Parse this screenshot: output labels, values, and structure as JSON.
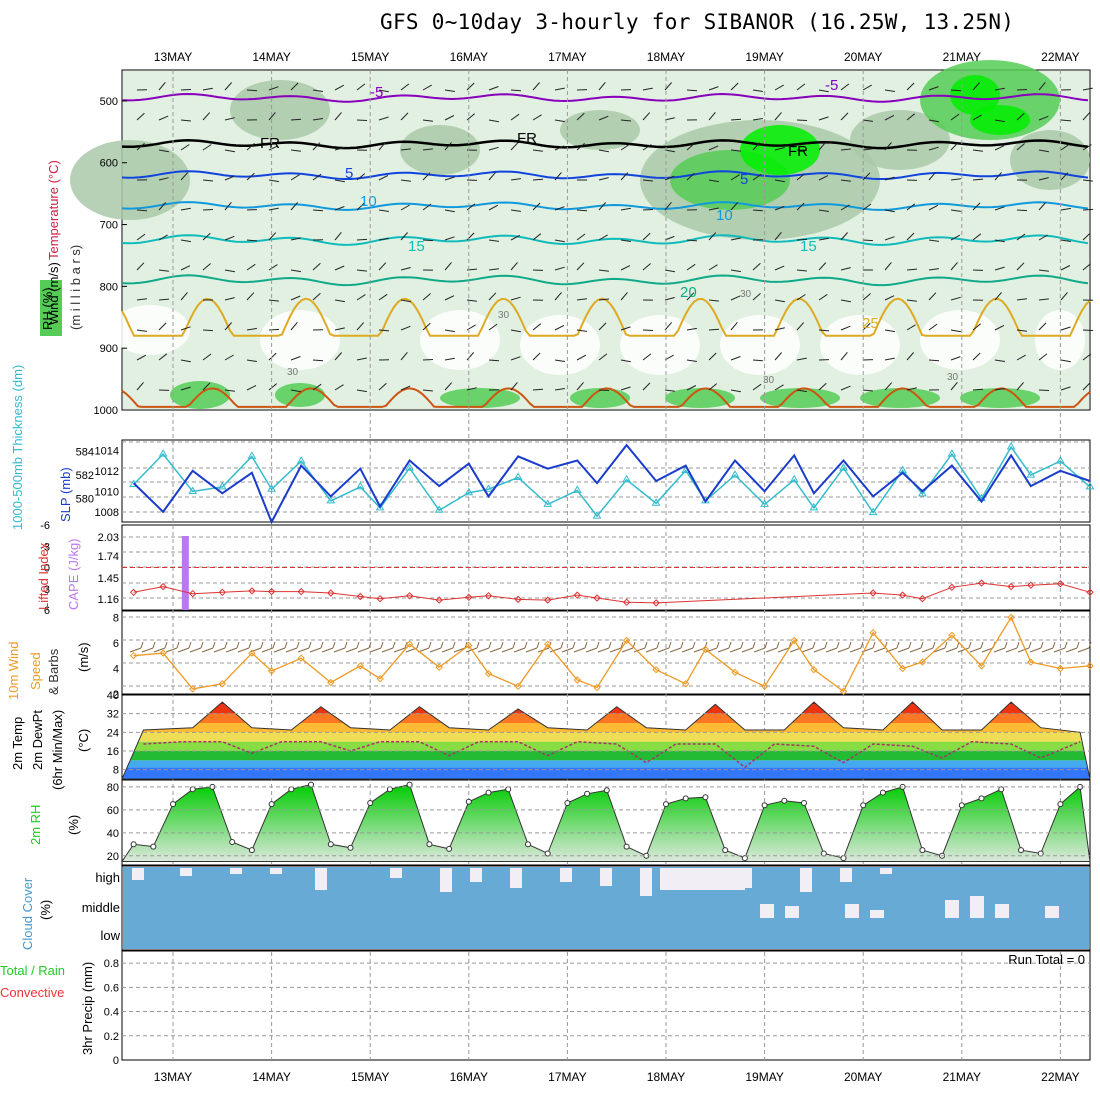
{
  "title": "GFS 0~10day 3-hourly for SIBANOR (16.25W, 13.25N)",
  "colors": {
    "grid": "#999999",
    "rh_light": "#e2f0e2",
    "rh_mid": "#a9c9a9",
    "rh_green": "#55cc55",
    "rh_bright": "#00ee00",
    "temp_cold": "#8800bb",
    "temp_fr": "#000000",
    "temp_5": "#1144dd",
    "temp_10": "#1199dd",
    "temp_15": "#11bbbb",
    "temp_20": "#11aa88",
    "temp_25": "#ddaa22",
    "temp_30": "#cc5511",
    "slp": "#1a3ccc",
    "thickness": "#33bbcc",
    "lifted": "#dd3333",
    "cape": "#bb77ee",
    "wind10m": "#ee9922",
    "barb": "#886644",
    "cloud_bg": "#66aad5",
    "cloud_clear": "#f2eef6",
    "rh2m": "#22cc22"
  },
  "dates": [
    "13MAY",
    "14MAY",
    "15MAY",
    "16MAY",
    "17MAY",
    "18MAY",
    "19MAY",
    "20MAY",
    "21MAY",
    "22MAY"
  ],
  "panels": {
    "upper": {
      "ylabel_wind": "Wind (m/s)",
      "ylabel_temp": "Temperature (°C)",
      "ylabel_rh": "RH (%)",
      "ylabel_mb": "(m i l l i b a r s)",
      "yticks": [
        "500",
        "600",
        "700",
        "800",
        "900",
        "1000"
      ],
      "contour_labels": [
        "-5",
        "-5",
        "FR",
        "FR",
        "FR",
        "5",
        "5",
        "10",
        "10",
        "15",
        "15",
        "20",
        "25",
        "30",
        "30",
        "30",
        "30",
        "30"
      ]
    },
    "slp": {
      "ylabel_thick": "1000-500mb Thickness (dm)",
      "ylabel_slp": "SLP (mb)",
      "left_ticks": [
        "584",
        "582",
        "580"
      ],
      "right_ticks": [
        "1014",
        "1012",
        "1010",
        "1008"
      ]
    },
    "lifted": {
      "ylabel_li": "Lifted Index",
      "ylabel_cape": "CAPE (J/kg)",
      "left_ticks": [
        "-6",
        "-3",
        "0",
        "3",
        "6"
      ],
      "right_ticks": [
        "2.03",
        "1.74",
        "1.45",
        "1.16"
      ]
    },
    "wind": {
      "ylabel_a": "10m Wind",
      "ylabel_b": "Speed",
      "ylabel_c": "& Barbs",
      "unit": "(m/s)",
      "ticks": [
        "8",
        "6",
        "4",
        "2"
      ]
    },
    "temp": {
      "ylabel_a": "2m Temp",
      "ylabel_b": "2m DewPt",
      "ylabel_c": "(6hr Min/Max)",
      "unit": "(°C)",
      "ticks": [
        "40",
        "32",
        "24",
        "16",
        "8"
      ]
    },
    "rh": {
      "ylabel": "2m RH",
      "unit": "(%)",
      "ticks": [
        "80",
        "60",
        "40",
        "20"
      ]
    },
    "cloud": {
      "ylabel": "Cloud Cover",
      "unit": "(%)",
      "levels": [
        "high",
        "middle",
        "low"
      ]
    },
    "precip": {
      "ylabel_a": "Total / Rain",
      "ylabel_b": "Convective",
      "ylabel_c": "3hr Precip (mm)",
      "ticks": [
        "0.8",
        "0.6",
        "0.4",
        "0.2",
        "0"
      ],
      "run_total": "Run Total = 0"
    }
  },
  "chart_data": [
    {
      "type": "line",
      "name": "SLP",
      "x_unit": "day offset from 13MAY",
      "ylim": [
        1007,
        1015
      ],
      "series": [
        {
          "name": "SLP (mb)",
          "x": [
            -0.4,
            -0.1,
            0.2,
            0.5,
            0.8,
            1.0,
            1.3,
            1.6,
            1.9,
            2.1,
            2.4,
            2.7,
            3.0,
            3.2,
            3.5,
            3.8,
            4.1,
            4.3,
            4.6,
            4.9,
            5.2,
            5.4,
            5.7,
            6.0,
            6.3,
            6.5,
            6.8,
            7.1,
            7.4,
            7.6,
            7.9,
            8.2,
            8.5,
            8.7,
            9.0,
            9.3
          ],
          "values": [
            1010.8,
            1008.0,
            1012.0,
            1009.8,
            1011.8,
            1007.0,
            1012.5,
            1009.5,
            1012.2,
            1008.5,
            1013.0,
            1010.5,
            1012.7,
            1009.5,
            1013.4,
            1012.2,
            1013.0,
            1010.8,
            1014.5,
            1011.0,
            1012.5,
            1009.0,
            1013.0,
            1010.0,
            1013.5,
            1009.8,
            1013.0,
            1009.5,
            1011.8,
            1010.0,
            1012.5,
            1009.0,
            1013.5,
            1010.5,
            1012.0,
            1011.0
          ]
        },
        {
          "name": "1000-500mb Thickness (dm)",
          "x": [
            -0.4,
            -0.1,
            0.2,
            0.5,
            0.8,
            1.0,
            1.3,
            1.6,
            1.9,
            2.1,
            2.4,
            2.7,
            3.0,
            3.2,
            3.5,
            3.8,
            4.1,
            4.3,
            4.6,
            4.9,
            5.2,
            5.4,
            5.7,
            6.0,
            6.3,
            6.5,
            6.8,
            7.1,
            7.4,
            7.6,
            7.9,
            8.2,
            8.5,
            8.7,
            9.0,
            9.3
          ],
          "values": [
            581.2,
            583.8,
            580.6,
            581.0,
            583.6,
            580.8,
            583.2,
            579.8,
            581.0,
            579.2,
            582.6,
            579.0,
            580.5,
            580.8,
            581.8,
            579.5,
            580.7,
            578.5,
            581.6,
            579.6,
            582.4,
            579.8,
            582.0,
            579.5,
            581.6,
            579.2,
            582.6,
            578.8,
            582.4,
            580.4,
            583.8,
            580.0,
            584.4,
            582.0,
            583.2,
            581.0
          ]
        }
      ]
    },
    {
      "type": "line",
      "name": "Lifted Index",
      "x_unit": "day offset from 13MAY",
      "ylim": [
        6,
        -6
      ],
      "series": [
        {
          "name": "Lifted Index",
          "x": [
            -0.4,
            -0.1,
            0.2,
            0.5,
            0.8,
            1.0,
            1.3,
            1.6,
            1.9,
            2.1,
            2.4,
            2.7,
            3.0,
            3.2,
            3.5,
            3.8,
            4.1,
            4.3,
            4.6,
            4.9,
            5.2,
            5.4,
            5.7,
            6.0,
            6.3,
            6.5,
            6.8,
            7.1,
            7.4,
            7.6,
            7.9,
            8.2,
            8.5,
            8.7,
            9.0,
            9.3
          ],
          "values": [
            3.5,
            2.7,
            3.7,
            3.5,
            3.3,
            3.4,
            3.4,
            3.6,
            4.1,
            4.4,
            4.0,
            4.6,
            4.2,
            4.0,
            4.5,
            4.6,
            3.9,
            4.3,
            4.9,
            5.0,
            5.6,
            5.8,
            6.0,
            6.1,
            6.2,
            6.2,
            6.1,
            3.6,
            3.9,
            4.4,
            2.8,
            2.2,
            2.7,
            2.5,
            2.3,
            3.5
          ]
        }
      ]
    },
    {
      "type": "line",
      "name": "10m Wind Speed",
      "x_unit": "day offset from 13MAY",
      "ylim": [
        2,
        9
      ],
      "series": [
        {
          "name": "10m Wind Speed (m/s)",
          "x": [
            -0.4,
            -0.1,
            0.2,
            0.5,
            0.8,
            1.0,
            1.3,
            1.6,
            1.9,
            2.1,
            2.4,
            2.7,
            3.0,
            3.2,
            3.5,
            3.8,
            4.1,
            4.3,
            4.6,
            4.9,
            5.2,
            5.4,
            5.7,
            6.0,
            6.3,
            6.5,
            6.8,
            7.1,
            7.4,
            7.6,
            7.9,
            8.2,
            8.5,
            8.7,
            9.0,
            9.3
          ],
          "values": [
            5.0,
            5.2,
            2.4,
            2.8,
            5.2,
            3.8,
            4.8,
            2.9,
            4.2,
            3.2,
            5.9,
            4.1,
            5.8,
            3.6,
            2.6,
            5.9,
            3.1,
            2.5,
            6.2,
            3.9,
            2.8,
            5.5,
            3.7,
            2.6,
            6.2,
            3.9,
            2.2,
            6.8,
            4.0,
            4.5,
            6.6,
            4.2,
            8.0,
            4.5,
            4.0,
            4.2
          ]
        }
      ]
    },
    {
      "type": "area",
      "name": "2m Temp / DewPt",
      "x_unit": "day offset from 13MAY",
      "ylim": [
        4,
        40
      ],
      "series": [
        {
          "name": "2m Temp (°C)",
          "x": [
            -0.3,
            0.2,
            0.5,
            0.8,
            1.2,
            1.5,
            1.8,
            2.2,
            2.5,
            2.8,
            3.2,
            3.5,
            3.8,
            4.2,
            4.5,
            4.8,
            5.2,
            5.5,
            5.8,
            6.2,
            6.5,
            6.8,
            7.2,
            7.5,
            7.8,
            8.2,
            8.5,
            8.8,
            9.2
          ],
          "values": [
            25,
            26,
            37,
            26,
            25,
            35,
            26,
            25,
            35,
            26,
            25,
            34,
            26,
            25,
            35,
            26,
            25,
            36,
            25,
            25,
            37,
            26,
            25,
            37,
            25,
            25,
            37,
            26,
            24
          ]
        },
        {
          "name": "2m DewPt (°C)",
          "x": [
            -0.3,
            0.1,
            0.5,
            0.8,
            1.1,
            1.5,
            1.8,
            2.1,
            2.5,
            2.8,
            3.1,
            3.5,
            3.8,
            4.1,
            4.5,
            4.8,
            5.1,
            5.5,
            5.8,
            6.1,
            6.5,
            6.8,
            7.1,
            7.5,
            7.8,
            8.1,
            8.5,
            8.8,
            9.2
          ],
          "values": [
            19,
            20,
            20,
            15,
            20,
            20,
            16,
            20,
            20,
            14,
            20,
            20,
            14,
            20,
            19,
            11,
            19,
            19,
            9,
            19,
            18,
            11,
            19,
            18,
            13,
            20,
            19,
            13,
            20
          ]
        }
      ]
    },
    {
      "type": "area",
      "name": "2m RH",
      "x_unit": "day offset from 13MAY",
      "ylim": [
        15,
        85
      ],
      "series": [
        {
          "name": "2m RH (%)",
          "x": [
            -0.4,
            -0.2,
            0.0,
            0.2,
            0.4,
            0.6,
            0.8,
            1.0,
            1.2,
            1.4,
            1.6,
            1.8,
            2.0,
            2.2,
            2.4,
            2.6,
            2.8,
            3.0,
            3.2,
            3.4,
            3.6,
            3.8,
            4.0,
            4.2,
            4.4,
            4.6,
            4.8,
            5.0,
            5.2,
            5.4,
            5.6,
            5.8,
            6.0,
            6.2,
            6.4,
            6.6,
            6.8,
            7.0,
            7.2,
            7.4,
            7.6,
            7.8,
            8.0,
            8.2,
            8.4,
            8.6,
            8.8,
            9.0,
            9.2
          ],
          "values": [
            30,
            28,
            65,
            78,
            80,
            32,
            25,
            65,
            78,
            82,
            30,
            27,
            66,
            78,
            82,
            30,
            26,
            67,
            75,
            78,
            30,
            22,
            66,
            74,
            77,
            28,
            20,
            65,
            70,
            71,
            25,
            18,
            64,
            68,
            66,
            22,
            18,
            64,
            75,
            80,
            25,
            20,
            64,
            70,
            78,
            25,
            22,
            65,
            80
          ]
        }
      ]
    },
    {
      "type": "bar",
      "name": "3hr Precip",
      "ylim": [
        0,
        0.9
      ],
      "series": [
        {
          "name": "Total / Rain",
          "values": []
        },
        {
          "name": "Convective",
          "values": []
        }
      ]
    }
  ]
}
